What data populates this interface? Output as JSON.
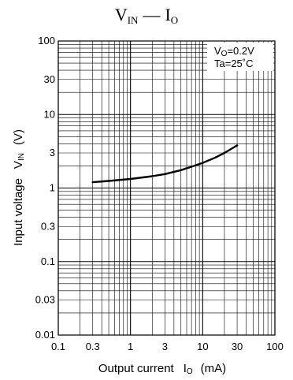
{
  "title": {
    "main": "V",
    "main_sub": "IN",
    "sep": "—",
    "right": "I",
    "right_sub": "O"
  },
  "chart_data": {
    "type": "line",
    "x_scale": "log",
    "y_scale": "log",
    "xlim": [
      0.1,
      100
    ],
    "ylim": [
      0.01,
      100
    ],
    "x_ticks": [
      "0.1",
      "0.3",
      "1",
      "3",
      "10",
      "30",
      "100"
    ],
    "y_ticks": [
      "100",
      "30",
      "10",
      "3",
      "1",
      "0.3",
      "0.1",
      "0.03",
      "0.01"
    ],
    "xlabel": {
      "text": "Output current",
      "sym": "I",
      "sym_sub": "O",
      "unit": "(mA)"
    },
    "ylabel": {
      "text": "Input voltage",
      "sym": "V",
      "sym_sub": "IN",
      "unit": "(V)"
    },
    "annotations": [
      {
        "sym": "V",
        "sym_sub": "O",
        "text": "=0.2V"
      },
      {
        "sym": "Ta=25",
        "sym_sub": "",
        "text": "˚C"
      }
    ],
    "grid": true,
    "series": [
      {
        "x": [
          0.3,
          0.5,
          1,
          2,
          3,
          5,
          7,
          10,
          15,
          20,
          30
        ],
        "y": [
          1.2,
          1.25,
          1.33,
          1.45,
          1.55,
          1.75,
          1.95,
          2.2,
          2.6,
          3.0,
          3.8
        ]
      }
    ]
  }
}
